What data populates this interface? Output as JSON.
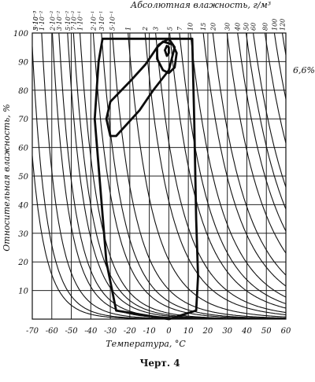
{
  "chart_data": {
    "type": "line",
    "title": "Абсолютная влажность, г/м³",
    "xlabel": "Температура, °С",
    "ylabel": "Относительная влажность, %",
    "xlim": [
      -70,
      60
    ],
    "ylim": [
      0,
      100
    ],
    "x_ticks": [
      "-70",
      "-60",
      "-50",
      "-40",
      "-30",
      "-20",
      "-10",
      "0",
      "10",
      "20",
      "30",
      "40",
      "50",
      "60"
    ],
    "y_ticks": [
      "10",
      "20",
      "30",
      "40",
      "50",
      "60",
      "70",
      "80",
      "90",
      "100"
    ],
    "grid": true,
    "series": [
      {
        "label": "3·10⁻³",
        "abs_humidity": 0.003
      },
      {
        "label": "5·10⁻³",
        "abs_humidity": 0.005
      },
      {
        "label": "1·10⁻²",
        "abs_humidity": 0.01
      },
      {
        "label": "2·10⁻²",
        "abs_humidity": 0.02
      },
      {
        "label": "3·10⁻²",
        "abs_humidity": 0.03
      },
      {
        "label": "5·10⁻²",
        "abs_humidity": 0.05
      },
      {
        "label": "7·10⁻²",
        "abs_humidity": 0.07
      },
      {
        "label": "1·10⁻¹",
        "abs_humidity": 0.1
      },
      {
        "label": "2·10⁻¹",
        "abs_humidity": 0.2
      },
      {
        "label": "3·10⁻¹",
        "abs_humidity": 0.3
      },
      {
        "label": "5·10⁻¹",
        "abs_humidity": 0.5
      },
      {
        "label": "1",
        "abs_humidity": 1
      },
      {
        "label": "2",
        "abs_humidity": 2
      },
      {
        "label": "3",
        "abs_humidity": 3
      },
      {
        "label": "5",
        "abs_humidity": 5
      },
      {
        "label": "7",
        "abs_humidity": 7
      },
      {
        "label": "10",
        "abs_humidity": 10
      },
      {
        "label": "15",
        "abs_humidity": 15
      },
      {
        "label": "20",
        "abs_humidity": 20
      },
      {
        "label": "30",
        "abs_humidity": 30
      },
      {
        "label": "40",
        "abs_humidity": 40
      },
      {
        "label": "50",
        "abs_humidity": 50
      },
      {
        "label": "60",
        "abs_humidity": 60
      },
      {
        "label": "80",
        "abs_humidity": 80
      },
      {
        "label": "100",
        "abs_humidity": 100
      },
      {
        "label": "120",
        "abs_humidity": 120
      }
    ],
    "annotations": [
      "6,6%"
    ],
    "regions": [
      {
        "name": "outer",
        "points": [
          [
            -34,
            98
          ],
          [
            12,
            98
          ],
          [
            13,
            70
          ],
          [
            14,
            35
          ],
          [
            15,
            15
          ],
          [
            14,
            3
          ],
          [
            0,
            0
          ],
          [
            -27,
            3
          ],
          [
            -32,
            20
          ],
          [
            -35,
            45
          ],
          [
            -38,
            70
          ],
          [
            -36,
            90
          ],
          [
            -34,
            98
          ]
        ]
      },
      {
        "name": "middle",
        "points": [
          [
            -30,
            64
          ],
          [
            -27,
            64
          ],
          [
            -15,
            73
          ],
          [
            -8,
            80
          ],
          [
            0,
            87
          ],
          [
            3,
            95
          ],
          [
            0,
            98
          ],
          [
            -5,
            96
          ],
          [
            -12,
            89
          ],
          [
            -20,
            83
          ],
          [
            -30,
            76
          ],
          [
            -32,
            70
          ],
          [
            -30,
            64
          ]
        ]
      },
      {
        "name": "inner",
        "points": [
          [
            -6,
            91
          ],
          [
            -3,
            87
          ],
          [
            0,
            86
          ],
          [
            3,
            88
          ],
          [
            4,
            93
          ],
          [
            2,
            96
          ],
          [
            -3,
            97
          ],
          [
            -6,
            95
          ],
          [
            -6,
            91
          ]
        ]
      },
      {
        "name": "innermost",
        "points": [
          [
            -2,
            94
          ],
          [
            -1,
            92
          ],
          [
            0,
            93
          ],
          [
            0,
            95
          ],
          [
            -1,
            95.5
          ],
          [
            -2,
            94
          ]
        ]
      }
    ]
  },
  "caption": "Черт. 4"
}
